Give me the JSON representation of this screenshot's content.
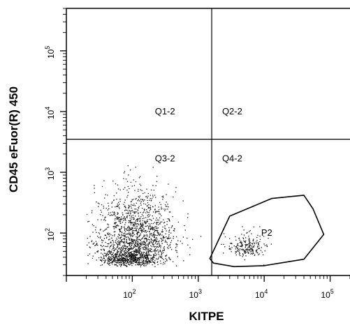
{
  "chart_data": {
    "type": "scatter",
    "xlabel": "KITPE",
    "ylabel": "CD45 eFuor(R) 450",
    "x_scale": "log",
    "y_scale": "log",
    "xlim": [
      10,
      200000
    ],
    "ylim": [
      20,
      500000
    ],
    "x_ticks": [
      {
        "value": 100,
        "base": "10",
        "exp": "2"
      },
      {
        "value": 1000,
        "base": "10",
        "exp": "3"
      },
      {
        "value": 10000,
        "base": "10",
        "exp": "4"
      },
      {
        "value": 100000,
        "base": "10",
        "exp": "5"
      }
    ],
    "y_ticks": [
      {
        "value": 100,
        "base": "10",
        "exp": "2"
      },
      {
        "value": 1000,
        "base": "10",
        "exp": "3"
      },
      {
        "value": 10000,
        "base": "10",
        "exp": "4"
      },
      {
        "value": 100000,
        "base": "10",
        "exp": "5"
      }
    ],
    "quadrant_lines": {
      "x": 1600,
      "y": 3500
    },
    "quadrants": [
      {
        "label": "Q1-2",
        "x": 220,
        "y": 9000
      },
      {
        "label": "Q2-2",
        "x": 2300,
        "y": 9000
      },
      {
        "label": "Q3-2",
        "x": 220,
        "y": 1500
      },
      {
        "label": "Q4-2",
        "x": 2300,
        "y": 1500
      }
    ],
    "gate": {
      "label": "P2",
      "label_pos": {
        "x": 9000,
        "y": 90
      },
      "polygon": [
        [
          1500,
          38
        ],
        [
          3000,
          190
        ],
        [
          13000,
          370
        ],
        [
          40000,
          420
        ],
        [
          55000,
          250
        ],
        [
          80000,
          95
        ],
        [
          40000,
          37
        ],
        [
          10000,
          29
        ],
        [
          3500,
          28
        ],
        [
          1700,
          32
        ]
      ]
    },
    "populations": [
      {
        "name": "",
        "count": 1400,
        "x_center_log": 2.05,
        "x_sd_log": 0.3,
        "y_center_log": 1.78,
        "y_sd_log": 0.45,
        "x_min": 20,
        "x_max": 1500,
        "y_min": 28,
        "y_max": 1400
      },
      {
        "name": "",
        "count": 600,
        "x_center_log": 1.95,
        "x_sd_log": 0.22,
        "y_center_log": 1.55,
        "y_sd_log": 0.1,
        "x_min": 20,
        "x_max": 900,
        "y_min": 28,
        "y_max": 80
      },
      {
        "name": "",
        "count": 220,
        "x_center_log": 3.72,
        "x_sd_log": 0.14,
        "y_center_log": 1.72,
        "y_sd_log": 0.14,
        "x_min": 2200,
        "x_max": 30000,
        "y_min": 30,
        "y_max": 200
      }
    ]
  }
}
